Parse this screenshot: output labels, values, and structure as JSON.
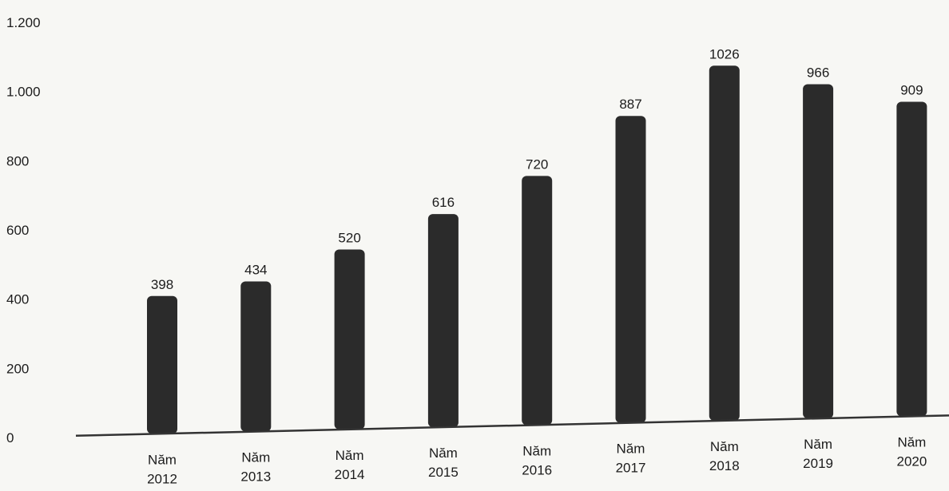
{
  "chart_data": {
    "type": "bar",
    "title": "",
    "xlabel": "",
    "ylabel": "",
    "categories": [
      [
        "Năm",
        "2012"
      ],
      [
        "Năm",
        "2013"
      ],
      [
        "Năm",
        "2014"
      ],
      [
        "Năm",
        "2015"
      ],
      [
        "Năm",
        "2016"
      ],
      [
        "Năm",
        "2017"
      ],
      [
        "Năm",
        "2018"
      ],
      [
        "Năm",
        "2019"
      ],
      [
        "Năm",
        "2020"
      ]
    ],
    "values": [
      398,
      434,
      520,
      616,
      720,
      887,
      1026,
      966,
      909
    ],
    "value_labels": [
      "398",
      "434",
      "520",
      "616",
      "720",
      "887",
      "1026",
      "966",
      "909"
    ],
    "ylim": [
      0,
      1200
    ],
    "y_ticks": [
      0,
      200,
      400,
      600,
      800,
      1000,
      1200
    ],
    "y_tick_labels": [
      "0",
      "200",
      "400",
      "600",
      "800",
      "1.000",
      "1.200"
    ],
    "grid": false,
    "legend": "none",
    "bar_color": "#2b2b2b",
    "axis_color": "#333333"
  }
}
